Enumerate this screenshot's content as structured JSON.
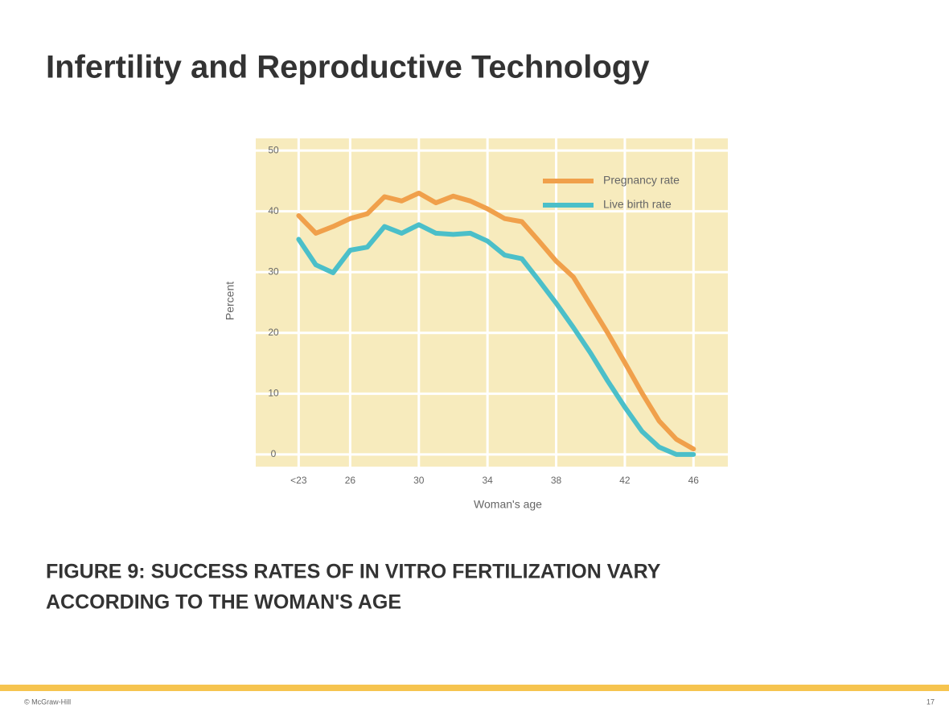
{
  "header": {
    "title": "Infertility and Reproductive Technology"
  },
  "chart_data": {
    "type": "line",
    "x_label": "Woman's age",
    "y_label": "Percent",
    "x": [
      23,
      24,
      25,
      26,
      27,
      28,
      29,
      30,
      31,
      32,
      33,
      34,
      35,
      36,
      37,
      38,
      39,
      40,
      41,
      42,
      43,
      44,
      45,
      46
    ],
    "series": [
      {
        "name": "Pregnancy rate",
        "color": "#f0a04b",
        "values": [
          39.3,
          36.4,
          37.5,
          38.8,
          39.6,
          42.4,
          41.7,
          43,
          41.4,
          42.5,
          41.7,
          40.4,
          38.8,
          38.3,
          35.1,
          31.8,
          29.2,
          24.6,
          20,
          15.1,
          10.1,
          5.5,
          2.5,
          0.9
        ]
      },
      {
        "name": "Live birth rate",
        "color": "#4bbfc9",
        "values": [
          35.4,
          31.2,
          29.9,
          33.6,
          34.1,
          37.5,
          36.4,
          37.8,
          36.4,
          36.2,
          36.4,
          35.1,
          32.8,
          32.2,
          28.6,
          24.9,
          20.9,
          16.7,
          12.1,
          7.8,
          3.8,
          1.2,
          0,
          0
        ]
      }
    ],
    "xlim": [
      20.5,
      48
    ],
    "xticks": [
      {
        "value": 23,
        "label": "<23"
      },
      26,
      30,
      34,
      38,
      42,
      46
    ],
    "ylim": [
      -2,
      52
    ],
    "yticks": [
      0,
      10,
      20,
      30,
      40,
      50
    ],
    "grid": true,
    "legend": "upper right",
    "background": "#f7ebbd"
  },
  "caption": {
    "lines": [
      "FIGURE 9: SUCCESS RATES OF IN VITRO FERTILIZATION VARY",
      "ACCORDING TO THE WOMAN'S AGE"
    ]
  },
  "footer": {
    "left": "© McGraw-Hill",
    "right": "17"
  }
}
